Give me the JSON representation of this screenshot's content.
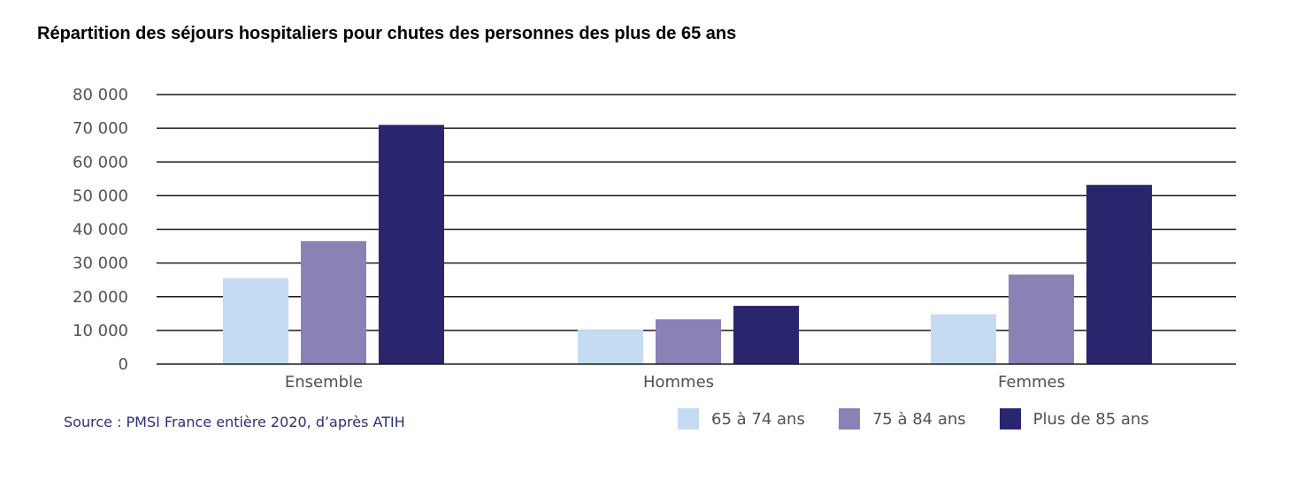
{
  "chart_data": {
    "type": "bar",
    "title": "Répartition des séjours hospitaliers pour chutes des personnes des plus de 65 ans",
    "categories": [
      "Ensemble",
      "Hommes",
      "Femmes"
    ],
    "series": [
      {
        "name": "65 à 74 ans",
        "values": [
          25500,
          10200,
          14800
        ],
        "color": "#c5dbf2"
      },
      {
        "name": "75 à 84 ans",
        "values": [
          36500,
          13300,
          26600
        ],
        "color": "#8a82b5"
      },
      {
        "name": "Plus de 85 ans",
        "values": [
          71000,
          17300,
          53200
        ],
        "color": "#2a266d"
      }
    ],
    "yticks": [
      "0",
      "10 000",
      "20 000",
      "30 000",
      "40 000",
      "50 000",
      "60 000",
      "70 000",
      "80 000"
    ],
    "ylim": [
      0,
      80000
    ],
    "xlabel": "",
    "ylabel": "",
    "grid": true,
    "legend_position": "bottom-right"
  },
  "source": "Source : PMSI France entière 2020, d’après ATIH"
}
